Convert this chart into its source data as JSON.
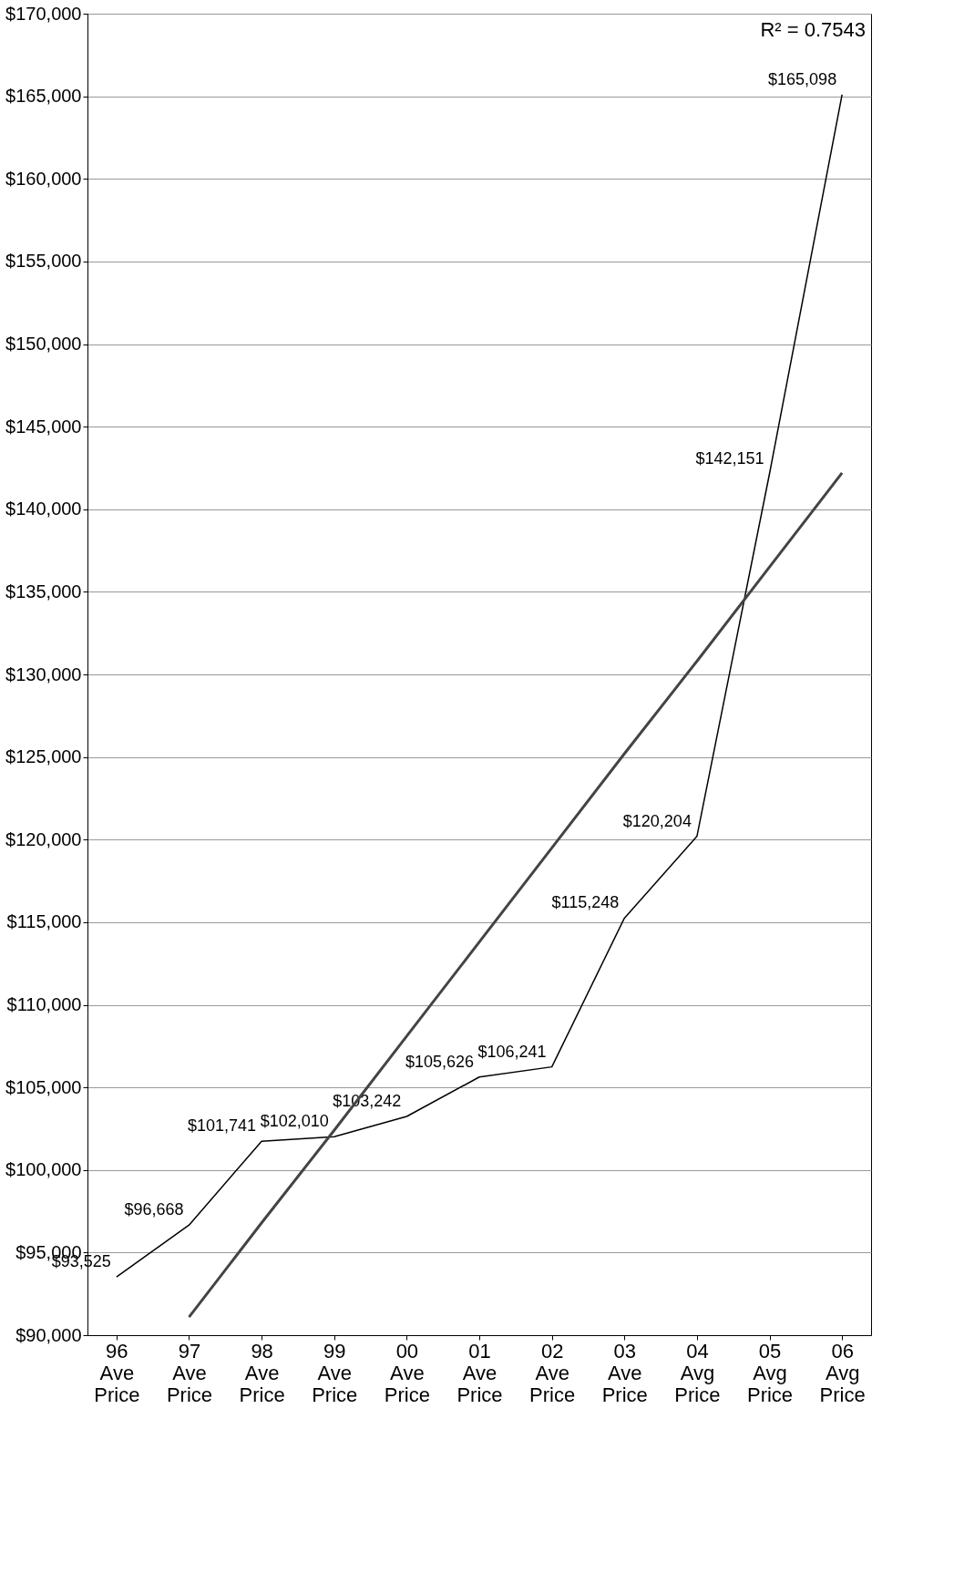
{
  "chart_data": {
    "type": "line",
    "categories": [
      "96 Ave Price",
      "97 Ave Price",
      "98 Ave Price",
      "99 Ave Price",
      "00 Ave Price",
      "01 Ave Price",
      "02 Ave Price",
      "03 Ave Price",
      "04 Avg Price",
      "05 Avg Price",
      "06 Avg Price"
    ],
    "series": [
      {
        "color": "#000000",
        "values": [
          93525,
          96668,
          101741,
          102010,
          103242,
          105626,
          106241,
          115248,
          120204,
          142151,
          165098
        ],
        "value_labels": [
          "$93,525",
          "$96,668",
          "$101,741",
          "$102,010",
          "$103,242",
          "$105,626",
          "$106,241",
          "$115,248",
          "$120,204",
          "$142,151",
          "$165,098"
        ]
      },
      {
        "type": "line",
        "color": "#444444",
        "values": [
          null,
          91100,
          96800,
          102400,
          108100,
          113800,
          119500,
          125200,
          130800,
          136500,
          142200
        ]
      }
    ],
    "ylim": [
      90000,
      170000
    ],
    "yticks": [
      {
        "value": 90000,
        "label": "$90,000"
      },
      {
        "value": 95000,
        "label": "$95,000"
      },
      {
        "value": 100000,
        "label": "$100,000"
      },
      {
        "value": 105000,
        "label": "$105,000"
      },
      {
        "value": 110000,
        "label": "$110,000"
      },
      {
        "value": 115000,
        "label": "$115,000"
      },
      {
        "value": 120000,
        "label": "$120,000"
      },
      {
        "value": 125000,
        "label": "$125,000"
      },
      {
        "value": 130000,
        "label": "$130,000"
      },
      {
        "value": 135000,
        "label": "$135,000"
      },
      {
        "value": 140000,
        "label": "$140,000"
      },
      {
        "value": 145000,
        "label": "$145,000"
      },
      {
        "value": 150000,
        "label": "$150,000"
      },
      {
        "value": 155000,
        "label": "$155,000"
      },
      {
        "value": 160000,
        "label": "$160,000"
      },
      {
        "value": 165000,
        "label": "$165,000"
      },
      {
        "value": 170000,
        "label": "$170,000"
      }
    ],
    "annotations": [
      "R² = 0.7543"
    ],
    "grid": "y",
    "marker": "none",
    "line_style": "solid"
  }
}
